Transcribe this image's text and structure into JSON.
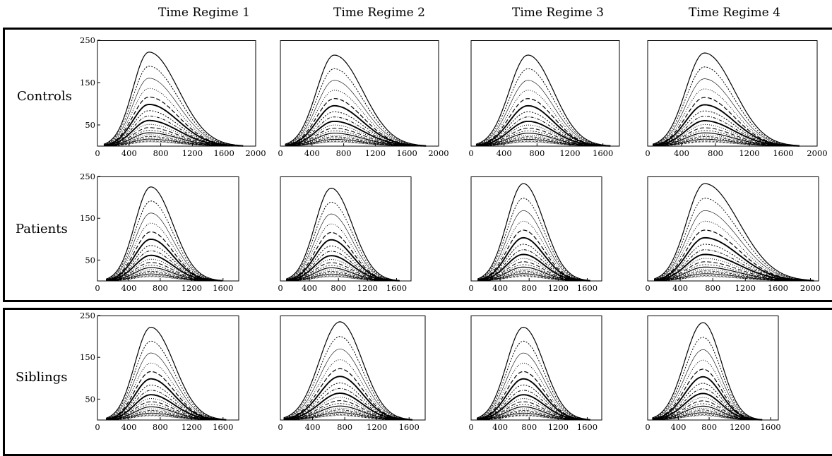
{
  "column_titles": [
    "Time Regime 1",
    "Time Regime 2",
    "Time Regime 3",
    "Time Regime 4"
  ],
  "row_labels": [
    "Controls",
    "Patients",
    "Siblings"
  ],
  "chart_data": [
    {
      "type": "line",
      "group": "Controls",
      "regime": "Time Regime 1",
      "ylim": [
        0,
        250
      ],
      "yticks": [
        50,
        150,
        250
      ],
      "xlim": [
        0,
        2000
      ],
      "xticks": [
        0,
        400,
        800,
        1200,
        1600,
        2000
      ],
      "peak_x": 650,
      "peak_y": 222,
      "x_start": 120,
      "x_end": 1800,
      "n_curves": 20
    },
    {
      "type": "line",
      "group": "Controls",
      "regime": "Time Regime 2",
      "ylim": [
        0,
        250
      ],
      "yticks": [],
      "xlim": [
        0,
        2000
      ],
      "xticks": [
        0,
        400,
        800,
        1200,
        1600,
        2000
      ],
      "peak_x": 680,
      "peak_y": 215,
      "x_start": 100,
      "x_end": 1800,
      "n_curves": 20
    },
    {
      "type": "line",
      "group": "Controls",
      "regime": "Time Regime 3",
      "ylim": [
        0,
        250
      ],
      "yticks": [],
      "xlim": [
        0,
        1800
      ],
      "xticks": [
        0,
        400,
        800,
        1200,
        1600
      ],
      "peak_x": 690,
      "peak_y": 215,
      "x_start": 100,
      "x_end": 1650,
      "n_curves": 20
    },
    {
      "type": "line",
      "group": "Controls",
      "regime": "Time Regime 4",
      "ylim": [
        0,
        250
      ],
      "yticks": [],
      "xlim": [
        0,
        2000
      ],
      "xticks": [
        0,
        400,
        800,
        1200,
        1600,
        2000
      ],
      "peak_x": 670,
      "peak_y": 220,
      "x_start": 100,
      "x_end": 1750,
      "n_curves": 20
    },
    {
      "type": "line",
      "group": "Patients",
      "regime": "Time Regime 1",
      "ylim": [
        0,
        250
      ],
      "yticks": [
        50,
        150,
        250
      ],
      "xlim": [
        0,
        1800
      ],
      "xticks": [
        0,
        400,
        800,
        1200,
        1600
      ],
      "peak_x": 680,
      "peak_y": 225,
      "x_start": 150,
      "x_end": 1550,
      "n_curves": 20
    },
    {
      "type": "line",
      "group": "Patients",
      "regime": "Time Regime 2",
      "ylim": [
        0,
        250
      ],
      "yticks": [],
      "xlim": [
        0,
        1800
      ],
      "xticks": [
        0,
        400,
        800,
        1200,
        1600
      ],
      "peak_x": 700,
      "peak_y": 222,
      "x_start": 120,
      "x_end": 1600,
      "n_curves": 20
    },
    {
      "type": "line",
      "group": "Patients",
      "regime": "Time Regime 3",
      "ylim": [
        0,
        250
      ],
      "yticks": [],
      "xlim": [
        0,
        1800
      ],
      "xticks": [
        0,
        400,
        800,
        1200,
        1600
      ],
      "peak_x": 720,
      "peak_y": 233,
      "x_start": 130,
      "x_end": 1600,
      "n_curves": 20
    },
    {
      "type": "line",
      "group": "Patients",
      "regime": "Time Regime 4",
      "ylim": [
        0,
        250
      ],
      "yticks": [],
      "xlim": [
        0,
        2100
      ],
      "xticks": [
        0,
        400,
        800,
        1200,
        1600,
        2000
      ],
      "peak_x": 700,
      "peak_y": 233,
      "x_start": 120,
      "x_end": 2000,
      "n_curves": 20
    },
    {
      "type": "line",
      "group": "Siblings",
      "regime": "Time Regime 1",
      "ylim": [
        0,
        250
      ],
      "yticks": [
        50,
        150,
        250
      ],
      "xlim": [
        0,
        1800
      ],
      "xticks": [
        0,
        400,
        800,
        1200,
        1600
      ],
      "peak_x": 680,
      "peak_y": 222,
      "x_start": 150,
      "x_end": 1600,
      "n_curves": 20
    },
    {
      "type": "line",
      "group": "Siblings",
      "regime": "Time Regime 2",
      "ylim": [
        0,
        250
      ],
      "yticks": [],
      "xlim": [
        0,
        1800
      ],
      "xticks": [
        0,
        400,
        800,
        1200,
        1600
      ],
      "peak_x": 740,
      "peak_y": 235,
      "x_start": 80,
      "x_end": 1600,
      "n_curves": 20
    },
    {
      "type": "line",
      "group": "Siblings",
      "regime": "Time Regime 3",
      "ylim": [
        0,
        250
      ],
      "yticks": [],
      "xlim": [
        0,
        1800
      ],
      "xticks": [
        0,
        400,
        800,
        1200,
        1600
      ],
      "peak_x": 720,
      "peak_y": 222,
      "x_start": 120,
      "x_end": 1600,
      "n_curves": 20
    },
    {
      "type": "line",
      "group": "Siblings",
      "regime": "Time Regime 4",
      "ylim": [
        0,
        250
      ],
      "yticks": [],
      "xlim": [
        0,
        1700
      ],
      "xticks": [
        0,
        400,
        800,
        1200,
        1600
      ],
      "peak_x": 720,
      "peak_y": 233,
      "x_start": 100,
      "x_end": 1450,
      "n_curves": 20
    }
  ]
}
